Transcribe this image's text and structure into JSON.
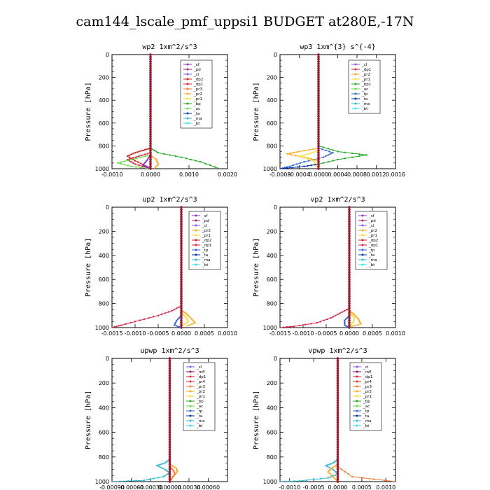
{
  "title": "cam144_lscale_pmf_uppsi1  BUDGET at280E,-17N",
  "colors": {
    "_sf": "#8833cc",
    "_pd": "#b02060",
    "_cl": "#8855ee",
    "_dp2": "#d02020",
    "_dp1": "#dd2244",
    "_dp4": "#cc1133",
    "_mfl": "#990066",
    "_pr4": "#dd3311",
    "_pr3": "#ff7733",
    "_pr2": "#ffaa22",
    "_pr1": "#ffdd33",
    "_bp": "#22aa22",
    "_bp1": "#22aa22",
    "_ac": "#66dd44",
    "_tp": "#3366dd",
    "_ta": "#0033aa",
    "_ma": "#33bbcc",
    "_bt": "#33ddee"
  },
  "chart_data": [
    {
      "type": "line",
      "title": "wp2  1xm^2/s^3",
      "ylabel": "Pressure [hPa]",
      "xlim": [
        -0.001,
        0.002
      ],
      "ylim": [
        0,
        1000
      ],
      "xticks": [
        "-0.0010",
        "0.0000",
        "0.0010",
        "0.0020"
      ],
      "yticks": [
        "0",
        "200",
        "400",
        "600",
        "800",
        "1000"
      ],
      "legend": [
        "_sf",
        "_pd",
        "_cl",
        "_dp2",
        "_dp1",
        "_pr3",
        "_pr2",
        "_pr1",
        "_bp",
        "_ac",
        "_ta",
        "_ma",
        "_bt"
      ],
      "series": [
        {
          "name": "_bp",
          "points": [
            [
              0,
              820
            ],
            [
              0.0002,
              860
            ],
            [
              0.0008,
              900
            ],
            [
              0.0013,
              940
            ],
            [
              0.0018,
              1000
            ]
          ]
        },
        {
          "name": "_dp2",
          "points": [
            [
              0,
              820
            ],
            [
              -0.0002,
              840
            ],
            [
              -0.0004,
              860
            ],
            [
              -0.0006,
              890
            ],
            [
              -0.0004,
              930
            ],
            [
              -0.0001,
              980
            ],
            [
              0,
              1000
            ]
          ]
        },
        {
          "name": "_dp1",
          "points": [
            [
              0,
              860
            ],
            [
              -0.0003,
              890
            ],
            [
              -0.0006,
              920
            ],
            [
              -0.0004,
              960
            ],
            [
              0,
              1000
            ]
          ]
        },
        {
          "name": "_ac",
          "points": [
            [
              0,
              880
            ],
            [
              -0.0005,
              920
            ],
            [
              -0.00085,
              950
            ],
            [
              -0.0005,
              980
            ],
            [
              0,
              1000
            ]
          ]
        },
        {
          "name": "_pr2",
          "points": [
            [
              0,
              880
            ],
            [
              0.00015,
              920
            ],
            [
              0.0002,
              960
            ],
            [
              0.0001,
              1000
            ]
          ]
        },
        {
          "name": "_sf",
          "points": [
            [
              0,
              880
            ],
            [
              -0.0001,
              930
            ],
            [
              -0.0002,
              970
            ],
            [
              0,
              1000
            ]
          ]
        },
        {
          "name": "_pd",
          "points": [
            [
              0,
              0
            ],
            [
              0,
              400
            ],
            [
              0,
              800
            ],
            [
              0,
              1000
            ]
          ]
        }
      ]
    },
    {
      "type": "line",
      "title": "wp3  1xm^{3} s^{-4}",
      "ylabel": "Pressure [hPa]",
      "xlim": [
        -0.0008,
        0.0016
      ],
      "ylim": [
        0,
        1000
      ],
      "xticks": [
        "-0.0008",
        "-0.0004",
        "0.0000",
        "0.0004",
        "0.0008",
        "0.0012",
        "0.0016"
      ],
      "yticks": [
        "0",
        "200",
        "400",
        "600",
        "800",
        "1000"
      ],
      "legend": [
        "_cl",
        "_dp1",
        "_pr2",
        "_pr1",
        "_bp1",
        "_ac",
        "_tp",
        "_ta",
        "_ma",
        "_bt"
      ],
      "series": [
        {
          "name": "_bp1",
          "points": [
            [
              0,
              800
            ],
            [
              0.0004,
              850
            ],
            [
              0.001,
              880
            ],
            [
              0.0004,
              920
            ],
            [
              0,
              960
            ],
            [
              0,
              1000
            ]
          ]
        },
        {
          "name": "_tp",
          "points": [
            [
              0,
              820
            ],
            [
              0.0003,
              860
            ],
            [
              0.0001,
              900
            ],
            [
              -0.0003,
              940
            ],
            [
              -0.0006,
              980
            ],
            [
              -0.0008,
              1000
            ]
          ]
        },
        {
          "name": "_pr2",
          "points": [
            [
              0,
              820
            ],
            [
              -0.0004,
              850
            ],
            [
              -0.00065,
              870
            ],
            [
              -0.0003,
              900
            ],
            [
              0,
              930
            ],
            [
              0,
              1000
            ]
          ]
        },
        {
          "name": "_pr1",
          "points": [
            [
              0,
              840
            ],
            [
              -0.0002,
              870
            ],
            [
              -0.0004,
              890
            ],
            [
              -0.0001,
              930
            ],
            [
              0,
              1000
            ]
          ]
        },
        {
          "name": "_ta",
          "points": [
            [
              0,
              960
            ],
            [
              -0.0003,
              980
            ],
            [
              -0.0008,
              1000
            ]
          ]
        },
        {
          "name": "_cl",
          "points": [
            [
              0,
              0
            ],
            [
              0,
              400
            ],
            [
              0,
              800
            ],
            [
              0,
              1000
            ]
          ]
        }
      ]
    },
    {
      "type": "line",
      "title": "up2  1xm^2/s^3",
      "ylabel": "Pressure [hPa]",
      "xlim": [
        -0.0015,
        0.001
      ],
      "ylim": [
        0,
        1000
      ],
      "xticks": [
        "-0.0015",
        "-0.0010",
        "-0.0005",
        "0.0000",
        "0.0005",
        "0.0010"
      ],
      "yticks": [
        "0",
        "200",
        "400",
        "600",
        "800",
        "1000"
      ],
      "legend": [
        "_sf",
        "_pd",
        "_cl",
        "_pr2",
        "_pr1",
        "_dp2",
        "_dp1",
        "_tp",
        "_ta",
        "_ma",
        "_bt"
      ],
      "series": [
        {
          "name": "_dp1",
          "points": [
            [
              0,
              820
            ],
            [
              -0.0002,
              860
            ],
            [
              -0.0005,
              900
            ],
            [
              -0.0009,
              940
            ],
            [
              -0.0013,
              980
            ],
            [
              -0.0015,
              1000
            ]
          ]
        },
        {
          "name": "_pr2",
          "points": [
            [
              0,
              860
            ],
            [
              0.0001,
              880
            ],
            [
              0.0002,
              920
            ],
            [
              0.0003,
              960
            ],
            [
              0.0001,
              990
            ]
          ]
        },
        {
          "name": "_pr1",
          "points": [
            [
              0,
              880
            ],
            [
              0.0001,
              910
            ],
            [
              0.00015,
              950
            ],
            [
              0,
              990
            ]
          ]
        },
        {
          "name": "_tp",
          "points": [
            [
              0,
              900
            ],
            [
              -0.0001,
              940
            ],
            [
              -0.00015,
              980
            ],
            [
              0,
              1000
            ]
          ]
        },
        {
          "name": "_sf",
          "points": [
            [
              0,
              0
            ],
            [
              0,
              400
            ],
            [
              0,
              800
            ],
            [
              0,
              1000
            ]
          ]
        }
      ]
    },
    {
      "type": "line",
      "title": "vp2  1xm^2/s^3",
      "ylabel": "Pressure [hPa]",
      "xlim": [
        -0.0015,
        0.001
      ],
      "ylim": [
        0,
        1000
      ],
      "xticks": [
        "-0.0015",
        "-0.0010",
        "-0.0005",
        "0.0000",
        "0.0005",
        "0.0010"
      ],
      "yticks": [
        "0",
        "200",
        "400",
        "600",
        "800",
        "1000"
      ],
      "legend": [
        "_sf",
        "_pd",
        "_cl",
        "_pr2",
        "_pr1",
        "_dp2",
        "_dp1",
        "_tp",
        "_ta",
        "_ma",
        "_bt"
      ],
      "series": [
        {
          "name": "_dp1",
          "points": [
            [
              0,
              840
            ],
            [
              -0.0002,
              880
            ],
            [
              -0.0004,
              920
            ],
            [
              -0.0007,
              960
            ],
            [
              -0.0012,
              990
            ],
            [
              -0.0015,
              1000
            ]
          ]
        },
        {
          "name": "_pr2",
          "points": [
            [
              0,
              860
            ],
            [
              0.0001,
              890
            ],
            [
              0.0002,
              930
            ],
            [
              0.00025,
              970
            ],
            [
              0,
              995
            ]
          ]
        },
        {
          "name": "_pr1",
          "points": [
            [
              0,
              880
            ],
            [
              0.0001,
              910
            ],
            [
              0.0001,
              950
            ],
            [
              0,
              990
            ]
          ]
        },
        {
          "name": "_tp",
          "points": [
            [
              0,
              900
            ],
            [
              -0.0001,
              940
            ],
            [
              -0.0001,
              980
            ],
            [
              0,
              1000
            ]
          ]
        },
        {
          "name": "_sf",
          "points": [
            [
              0,
              0
            ],
            [
              0,
              400
            ],
            [
              0,
              800
            ],
            [
              0,
              1000
            ]
          ]
        }
      ]
    },
    {
      "type": "line",
      "title": "upwp  1xm^2/s^3",
      "ylabel": "Pressure [hPa]",
      "xlim": [
        -0.0009,
        0.0009
      ],
      "ylim": [
        0,
        1000
      ],
      "xticks": [
        "-0.00090",
        "-0.00060",
        "-0.00030",
        "0.00000",
        "0.00030",
        "0.00060"
      ],
      "yticks": [
        "0",
        "200",
        "400",
        "600",
        "800",
        "1000"
      ],
      "legend": [
        "_cl",
        "_mfl",
        "_dp1",
        "_pr4",
        "_pr3",
        "_pr2",
        "_pr1",
        "_bp",
        "_ac",
        "_tp",
        "_ta",
        "_ma",
        "_bt"
      ],
      "series": [
        {
          "name": "_ma",
          "points": [
            [
              0,
              820
            ],
            [
              -8e-05,
              850
            ],
            [
              -0.0002,
              870
            ],
            [
              -8e-05,
              900
            ],
            [
              0,
              930
            ],
            [
              -0.0001,
              960
            ],
            [
              -0.0004,
              990
            ],
            [
              -0.0009,
              1000
            ]
          ]
        },
        {
          "name": "_pr2",
          "points": [
            [
              0,
              860
            ],
            [
              0.0001,
              890
            ],
            [
              0.00012,
              920
            ],
            [
              5e-05,
              960
            ],
            [
              0,
              1000
            ]
          ]
        },
        {
          "name": "_pr3",
          "points": [
            [
              0,
              880
            ],
            [
              6e-05,
              910
            ],
            [
              8e-05,
              940
            ],
            [
              0,
              1000
            ]
          ]
        },
        {
          "name": "_cl",
          "points": [
            [
              0,
              0
            ],
            [
              0,
              400
            ],
            [
              0,
              800
            ],
            [
              0,
              1000
            ]
          ]
        }
      ]
    },
    {
      "type": "line",
      "title": "vpwp  1xm^2/s^3",
      "ylabel": "Pressure [hPa]",
      "xlim": [
        -0.0012,
        0.0012
      ],
      "ylim": [
        0,
        1000
      ],
      "xticks": [
        "-0.0010",
        "-0.0005",
        "0.0000",
        "0.0005",
        "0.0010"
      ],
      "yticks": [
        "0",
        "200",
        "400",
        "600",
        "800",
        "1000"
      ],
      "legend": [
        "_cl",
        "_mfl",
        "_dp1",
        "_pr4",
        "_pr3",
        "_pr2",
        "_pr1",
        "_bp",
        "_ac",
        "_tp",
        "_ta",
        "_ma",
        "_bt"
      ],
      "series": [
        {
          "name": "_ma",
          "points": [
            [
              0,
              820
            ],
            [
              -0.0001,
              850
            ],
            [
              -0.00025,
              870
            ],
            [
              -0.0001,
              900
            ],
            [
              0,
              940
            ],
            [
              -0.0002,
              970
            ],
            [
              -0.0008,
              995
            ],
            [
              -0.0012,
              1000
            ]
          ]
        },
        {
          "name": "_pr2",
          "points": [
            [
              0,
              860
            ],
            [
              -0.00012,
              890
            ],
            [
              -0.0002,
              920
            ],
            [
              -0.0001,
              960
            ],
            [
              0,
              1000
            ]
          ]
        },
        {
          "name": "_pr3",
          "points": [
            [
              0,
              880
            ],
            [
              0.0003,
              960
            ],
            [
              0.0012,
              1000
            ]
          ]
        },
        {
          "name": "_cl",
          "points": [
            [
              0,
              0
            ],
            [
              0,
              400
            ],
            [
              0,
              800
            ],
            [
              0,
              1000
            ]
          ]
        }
      ]
    }
  ]
}
